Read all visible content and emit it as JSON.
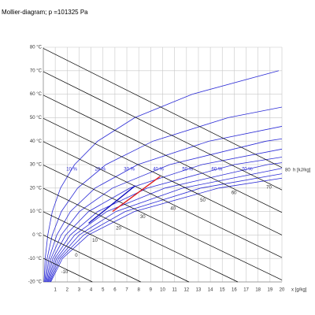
{
  "chart_data": {
    "type": "mollier",
    "title": "Mollier-diagram; p =101325 Pa",
    "xlabel": "x [g/kg]",
    "xlim": [
      0,
      20
    ],
    "ylim": [
      -20,
      80
    ],
    "xticks": [
      1,
      2,
      3,
      4,
      5,
      6,
      7,
      8,
      9,
      10,
      11,
      12,
      13,
      14,
      15,
      16,
      17,
      18,
      19,
      20
    ],
    "yticks": [
      {
        "value": -20,
        "label": "-20 °C"
      },
      {
        "value": -10,
        "label": "-10 °C"
      },
      {
        "value": 0,
        "label": "0 °C"
      },
      {
        "value": 10,
        "label": "10 °C"
      },
      {
        "value": 20,
        "label": "20 °C"
      },
      {
        "value": 30,
        "label": "30 °C"
      },
      {
        "value": 40,
        "label": "40 °C"
      },
      {
        "value": 50,
        "label": "50 °C"
      },
      {
        "value": 60,
        "label": "60 °C"
      },
      {
        "value": 70,
        "label": "70 °C"
      },
      {
        "value": 80,
        "label": "80 °C"
      }
    ],
    "grid": true,
    "series": [
      {
        "name": "10 %",
        "color": "#2b2bd6",
        "x": [
          0.063,
          0.16,
          0.375,
          0.755,
          1.44,
          2.62,
          4.56,
          7.67,
          12.49,
          19.74
        ],
        "y": [
          -20,
          -10,
          0,
          10,
          20,
          30,
          40,
          50,
          60,
          70
        ]
      },
      {
        "name": "20 %",
        "color": "#2b2bd6",
        "x": [
          0.126,
          0.32,
          0.75,
          1.51,
          2.88,
          5.25,
          9.2,
          15.5,
          20
        ],
        "y": [
          -20,
          -10,
          0,
          10,
          20,
          30,
          40,
          50,
          54.5
        ]
      },
      {
        "name": "30 %",
        "color": "#2b2bd6",
        "x": [
          0.19,
          0.48,
          1.13,
          2.27,
          4.34,
          7.92,
          13.9,
          20
        ],
        "y": [
          -20,
          -10,
          0,
          10,
          20,
          30,
          40,
          46.3
        ]
      },
      {
        "name": "40 %",
        "color": "#2b2bd6",
        "x": [
          0.25,
          0.64,
          1.5,
          3.03,
          5.8,
          10.6,
          18.7,
          20
        ],
        "y": [
          -20,
          -10,
          0,
          10,
          20,
          30,
          40,
          41
        ]
      },
      {
        "name": "50 %",
        "color": "#2b2bd6",
        "x": [
          0.32,
          0.8,
          1.88,
          3.79,
          7.26,
          13.3,
          20
        ],
        "y": [
          -20,
          -10,
          0,
          10,
          20,
          30,
          36.6
        ]
      },
      {
        "name": "60 %",
        "color": "#2b2bd6",
        "x": [
          0.38,
          0.96,
          2.26,
          4.56,
          8.73,
          16,
          20
        ],
        "y": [
          -20,
          -10,
          0,
          10,
          20,
          30,
          33.2
        ]
      },
      {
        "name": "70 %",
        "color": "#2b2bd6",
        "x": [
          0.44,
          1.12,
          2.63,
          5.32,
          10.2,
          18.8,
          20
        ],
        "y": [
          -20,
          -10,
          0,
          10,
          20,
          30,
          30.8
        ]
      },
      {
        "color": "#2b2bd6",
        "x": [
          0.51,
          1.28,
          3.01,
          6.09,
          11.7,
          20
        ],
        "y": [
          -20,
          -10,
          0,
          10,
          20,
          28.4
        ]
      },
      {
        "color": "#2b2bd6",
        "x": [
          0.57,
          1.44,
          3.39,
          6.86,
          13.2,
          20
        ],
        "y": [
          -20,
          -10,
          0,
          10,
          20,
          26.1
        ]
      },
      {
        "color": "#2b2bd6",
        "x": [
          0.63,
          1.6,
          3.77,
          7.63,
          14.7,
          20
        ],
        "y": [
          -20,
          -10,
          0,
          10,
          20,
          24.2
        ]
      }
    ],
    "enthalpy": {
      "unit": "h [kJ/kg]",
      "color": "#000000",
      "lines": [
        {
          "h": -10,
          "x": [
            0,
            4.11
          ],
          "y": [
            -9.94,
            -20
          ]
        },
        {
          "h": 0,
          "x": [
            0,
            8.17
          ],
          "y": [
            0,
            -20
          ]
        },
        {
          "h": 10,
          "x": [
            0,
            12.2
          ],
          "y": [
            9.94,
            -20
          ]
        },
        {
          "h": 20,
          "x": [
            0,
            16.3
          ],
          "y": [
            19.9,
            -20
          ]
        },
        {
          "h": 30,
          "x": [
            0,
            20
          ],
          "y": [
            29.8,
            -19.2
          ]
        },
        {
          "h": 40,
          "x": [
            0,
            20
          ],
          "y": [
            39.8,
            -9.6
          ]
        },
        {
          "h": 50,
          "x": [
            0,
            20
          ],
          "y": [
            49.7,
            0
          ]
        },
        {
          "h": 60,
          "x": [
            0,
            20
          ],
          "y": [
            59.6,
            9.6
          ]
        },
        {
          "h": 70,
          "x": [
            0,
            20
          ],
          "y": [
            69.6,
            19.2
          ]
        },
        {
          "h": 80,
          "x": [
            0,
            20
          ],
          "y": [
            79.5,
            28.7
          ]
        }
      ]
    },
    "processes": [
      {
        "color": "#1010c0",
        "x": [
          3.8,
          7.7
        ],
        "y": [
          5,
          21
        ]
      },
      {
        "color": "#e02020",
        "x": [
          5.8,
          9.8
        ],
        "y": [
          10,
          25
        ]
      }
    ]
  }
}
